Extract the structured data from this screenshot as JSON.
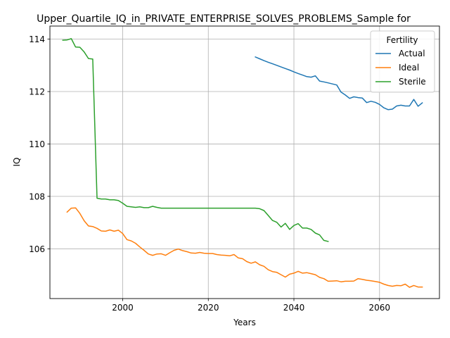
{
  "chart_data": {
    "type": "line",
    "title": "Upper_Quartile_IQ_in_PRIVATE_ENTERPRISE_SOLVES_PROBLEMS_Sample for",
    "xlabel": "Years",
    "ylabel": "IQ",
    "xlim": [
      1983,
      2074
    ],
    "ylim": [
      104.1,
      114.5
    ],
    "xticks": [
      2000,
      2020,
      2040,
      2060
    ],
    "yticks": [
      106,
      108,
      110,
      112,
      114
    ],
    "grid": true,
    "legend": {
      "title": "Fertility",
      "placement": "top-right"
    },
    "series": [
      {
        "name": "Actual",
        "color": "#1f77b4",
        "x": [
          2031,
          2032,
          2033,
          2034,
          2035,
          2036,
          2037,
          2038,
          2039,
          2040,
          2041,
          2042,
          2043,
          2044,
          2045,
          2046,
          2047,
          2048,
          2049,
          2050,
          2051,
          2052,
          2053,
          2054,
          2055,
          2056,
          2057,
          2058,
          2059,
          2060,
          2061,
          2062,
          2063,
          2064,
          2065,
          2066,
          2067,
          2068,
          2069,
          2070
        ],
        "y": [
          113.32,
          113.25,
          113.18,
          113.12,
          113.06,
          113.0,
          112.94,
          112.88,
          112.82,
          112.75,
          112.69,
          112.63,
          112.57,
          112.55,
          112.6,
          112.4,
          112.37,
          112.33,
          112.29,
          112.25,
          111.98,
          111.87,
          111.74,
          111.8,
          111.77,
          111.75,
          111.58,
          111.63,
          111.59,
          111.51,
          111.38,
          111.31,
          111.33,
          111.45,
          111.48,
          111.45,
          111.45,
          111.7,
          111.44,
          111.57
        ]
      },
      {
        "name": "Ideal",
        "color": "#ff7f0e",
        "x": [
          1987,
          1988,
          1989,
          1990,
          1991,
          1992,
          1993,
          1994,
          1995,
          1996,
          1997,
          1998,
          1999,
          2000,
          2001,
          2002,
          2003,
          2004,
          2005,
          2006,
          2007,
          2008,
          2009,
          2010,
          2011,
          2012,
          2013,
          2014,
          2015,
          2016,
          2017,
          2018,
          2019,
          2020,
          2021,
          2022,
          2023,
          2024,
          2025,
          2026,
          2027,
          2028,
          2029,
          2030,
          2031,
          2032,
          2033,
          2034,
          2035,
          2036,
          2037,
          2038,
          2039,
          2040,
          2041,
          2042,
          2043,
          2044,
          2045,
          2046,
          2047,
          2048,
          2049,
          2050,
          2051,
          2052,
          2053,
          2054,
          2055,
          2056,
          2057,
          2058,
          2059,
          2060,
          2061,
          2062,
          2063,
          2064,
          2065,
          2066,
          2067,
          2068,
          2069,
          2070
        ],
        "y": [
          107.4,
          107.55,
          107.56,
          107.35,
          107.07,
          106.87,
          106.85,
          106.78,
          106.68,
          106.67,
          106.72,
          106.67,
          106.71,
          106.58,
          106.35,
          106.3,
          106.21,
          106.07,
          105.94,
          105.8,
          105.75,
          105.8,
          105.81,
          105.75,
          105.85,
          105.94,
          105.99,
          105.93,
          105.89,
          105.84,
          105.83,
          105.86,
          105.83,
          105.82,
          105.82,
          105.78,
          105.76,
          105.75,
          105.73,
          105.78,
          105.65,
          105.62,
          105.51,
          105.45,
          105.5,
          105.39,
          105.33,
          105.2,
          105.13,
          105.1,
          105.01,
          104.92,
          105.03,
          105.07,
          105.14,
          105.07,
          105.09,
          105.05,
          105.01,
          104.91,
          104.86,
          104.76,
          104.77,
          104.78,
          104.74,
          104.76,
          104.76,
          104.77,
          104.86,
          104.83,
          104.8,
          104.78,
          104.75,
          104.72,
          104.65,
          104.6,
          104.57,
          104.6,
          104.59,
          104.65,
          104.53,
          104.6,
          104.54,
          104.54
        ]
      },
      {
        "name": "Sterile",
        "color": "#2ca02c",
        "x": [
          1986,
          1987,
          1988,
          1989,
          1990,
          1991,
          1992,
          1993,
          1994,
          1995,
          1996,
          1997,
          1998,
          1999,
          2000,
          2001,
          2002,
          2003,
          2004,
          2005,
          2006,
          2007,
          2008,
          2009,
          2010,
          2015,
          2020,
          2025,
          2030,
          2031,
          2032,
          2033,
          2034,
          2035,
          2036,
          2037,
          2038,
          2039,
          2040,
          2041,
          2042,
          2043,
          2044,
          2045,
          2046,
          2047,
          2048
        ],
        "y": [
          113.96,
          113.97,
          114.02,
          113.7,
          113.69,
          113.51,
          113.26,
          113.24,
          107.93,
          107.9,
          107.9,
          107.87,
          107.87,
          107.84,
          107.74,
          107.62,
          107.6,
          107.58,
          107.6,
          107.57,
          107.57,
          107.62,
          107.58,
          107.55,
          107.55,
          107.55,
          107.55,
          107.55,
          107.55,
          107.55,
          107.53,
          107.46,
          107.27,
          107.08,
          107.01,
          106.83,
          106.97,
          106.74,
          106.89,
          106.96,
          106.79,
          106.79,
          106.74,
          106.6,
          106.53,
          106.32,
          106.28
        ]
      }
    ]
  }
}
